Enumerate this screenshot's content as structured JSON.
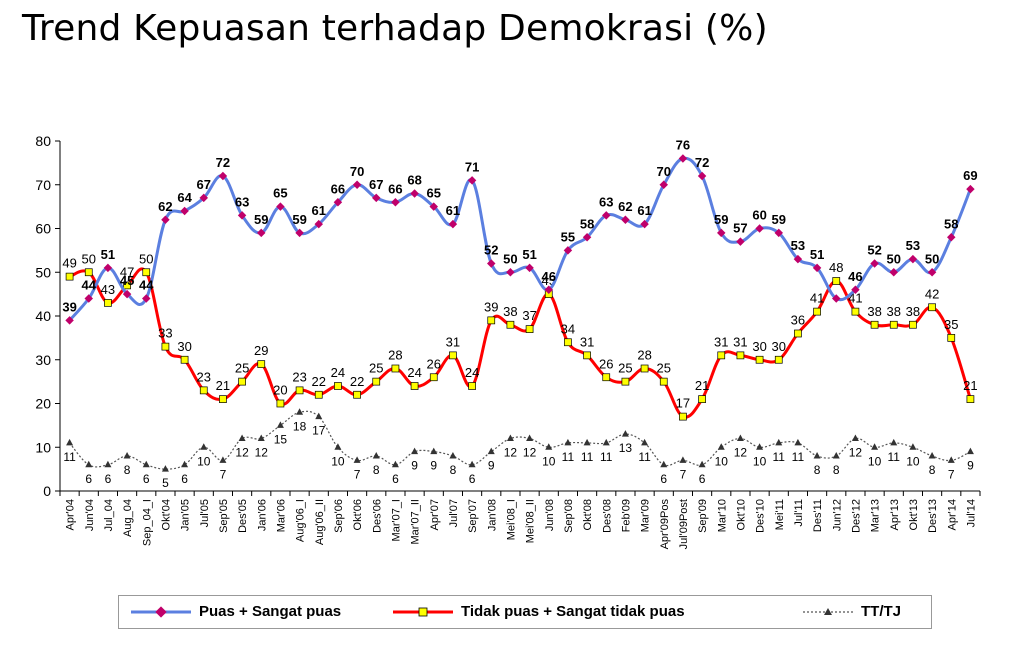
{
  "title": "Trend Kepuasan terhadap Demokrasi (%)",
  "colors": {
    "puas": "#5b7fe0",
    "tidak": "#ff0000",
    "tt": "#555555",
    "marker_puas": "#c0006a",
    "marker_tidak": "#ffff00"
  },
  "chart_data": {
    "type": "line",
    "title": "Trend Kepuasan terhadap Demokrasi (%)",
    "xlabel": "",
    "ylabel": "",
    "ylim": [
      0,
      80
    ],
    "yticks": [
      0,
      10,
      20,
      30,
      40,
      50,
      60,
      70,
      80
    ],
    "categories": [
      "Apr'04",
      "Jun'04",
      "Jul_04",
      "Aug_04",
      "Sep_04_I",
      "Okt'04",
      "Jan'05",
      "Jul'05",
      "Sep'05",
      "Des'05",
      "Jan'06",
      "Mar'06",
      "Aug'06_I",
      "Aug'06_II",
      "Sep'06",
      "Okt'06",
      "Des'06",
      "Mar'07_I",
      "Mar'07_II",
      "Apr'07",
      "Jul'07",
      "Sep'07",
      "Jan'08",
      "Mei'08_I",
      "Mei'08_II",
      "Jun'08",
      "Sep'08",
      "Okt'08",
      "Des'08",
      "Feb'09",
      "Mar'09",
      "Apr'09Pos",
      "Jul'09Post",
      "Sep'09",
      "Mar'10",
      "Okt'10",
      "Des'10",
      "Mei'11",
      "Jul'11",
      "Des'11",
      "Jun'12",
      "Des'12",
      "Mar'13",
      "Apr'13",
      "Okt'13",
      "Des'13",
      "Apr'14",
      "Jul'14"
    ],
    "tick_labels": [
      "Apr'04",
      "Jun'04",
      "Jul_04",
      "Aug_04",
      "Sep_04_I",
      "Okt'04",
      "Jan'05",
      "Jul'05",
      "Sep'05",
      "Des'05",
      "Jan'06",
      "Mar'06",
      "Aug'06_I",
      "Aug'06_II",
      "Sep'06",
      "Okt'06",
      "Des'06",
      "Mar'07_I",
      "Mar'07_II",
      "Apr'07",
      "Jul'07",
      "Sep'07",
      "Jan'08",
      "Mei'08_I",
      "Mei'08_II",
      "Jun'08",
      "Sep'08",
      "Okt'08",
      "Des'08",
      "Feb'09",
      "Mar'09",
      "Apr'09Pos",
      "Jul'09Post",
      "Sep'09",
      "Mar'10",
      "Okt'10",
      "Des'10",
      "Mei'11",
      "Jul'11",
      "Des'11",
      "Jun'12",
      "Des'12",
      "Mar'13",
      "Apr'13",
      "Okt'13",
      "Des'13",
      "Apr'14",
      "Jul'14"
    ],
    "series": [
      {
        "name": "Puas + Sangat puas",
        "key": "puas",
        "values": [
          39,
          44,
          51,
          45,
          44,
          62,
          64,
          67,
          72,
          63,
          59,
          65,
          59,
          61,
          66,
          70,
          67,
          66,
          68,
          65,
          61,
          71,
          52,
          50,
          51,
          46,
          55,
          58,
          63,
          62,
          61,
          70,
          76,
          72,
          59,
          57,
          60,
          59,
          53,
          51,
          44,
          46,
          52,
          50,
          53,
          50,
          58,
          69
        ],
        "labels": [
          "39",
          "44",
          "51",
          "45",
          "44",
          "62",
          "64",
          "67",
          "72",
          "63",
          "59",
          "65",
          "59",
          "61",
          "66",
          "70",
          "67",
          "66",
          "68",
          "65",
          "61",
          "71",
          "52",
          "50",
          "51",
          "46",
          "55",
          "58",
          "63",
          "62",
          "61",
          "70",
          "76",
          "72",
          "59",
          "57",
          "60",
          "59",
          "53",
          "51",
          "",
          "46",
          "52",
          "50",
          "53",
          "50",
          "58",
          "69"
        ]
      },
      {
        "name": "Tidak puas + Sangat tidak puas",
        "key": "tidak",
        "values": [
          49,
          50,
          43,
          47,
          50,
          33,
          30,
          23,
          21,
          25,
          29,
          20,
          23,
          22,
          24,
          22,
          25,
          28,
          24,
          26,
          31,
          24,
          39,
          38,
          37,
          45,
          34,
          31,
          26,
          25,
          28,
          25,
          17,
          21,
          31,
          31,
          30,
          30,
          36,
          41,
          48,
          41,
          38,
          38,
          38,
          42,
          35,
          21
        ],
        "labels": [
          "49",
          "50",
          "43",
          "47",
          "50",
          "33",
          "30",
          "23",
          "21",
          "25",
          "29",
          "20",
          "23",
          "22",
          "24",
          "22",
          "25",
          "28",
          "24",
          "26",
          "31",
          "24",
          "39",
          "38",
          "37",
          "45",
          "34",
          "31",
          "26",
          "25",
          "28",
          "25",
          "17",
          "21",
          "31",
          "31",
          "30",
          "30",
          "36",
          "41",
          "48",
          "41",
          "38",
          "38",
          "38",
          "42",
          "35",
          "21"
        ]
      },
      {
        "name": "TT/TJ",
        "key": "tt",
        "values": [
          11,
          6,
          6,
          8,
          6,
          5,
          6,
          10,
          7,
          12,
          12,
          15,
          18,
          17,
          10,
          7,
          8,
          6,
          9,
          9,
          8,
          6,
          9,
          12,
          12,
          10,
          11,
          11,
          11,
          13,
          11,
          6,
          7,
          6,
          10,
          12,
          10,
          11,
          11,
          8,
          8,
          12,
          10,
          11,
          10,
          8,
          7,
          9
        ],
        "labels": [
          "11",
          "6",
          "6",
          "8",
          "6",
          "5",
          "6",
          "10",
          "7",
          "12",
          "12",
          "15",
          "18",
          "17",
          "10",
          "7",
          "8",
          "6",
          "9",
          "9",
          "8",
          "6",
          "9",
          "12",
          "12",
          "10",
          "11",
          "11",
          "11",
          "13",
          "11",
          "6",
          "7",
          "6",
          "10",
          "12",
          "10",
          "11",
          "11",
          "8",
          "8",
          "12",
          "10",
          "11",
          "10",
          "8",
          "7",
          "9"
        ]
      }
    ],
    "legend": [
      "Puas + Sangat puas",
      "Tidak puas + Sangat tidak puas",
      "TT/TJ"
    ],
    "legend_position": "bottom",
    "grid": false
  }
}
